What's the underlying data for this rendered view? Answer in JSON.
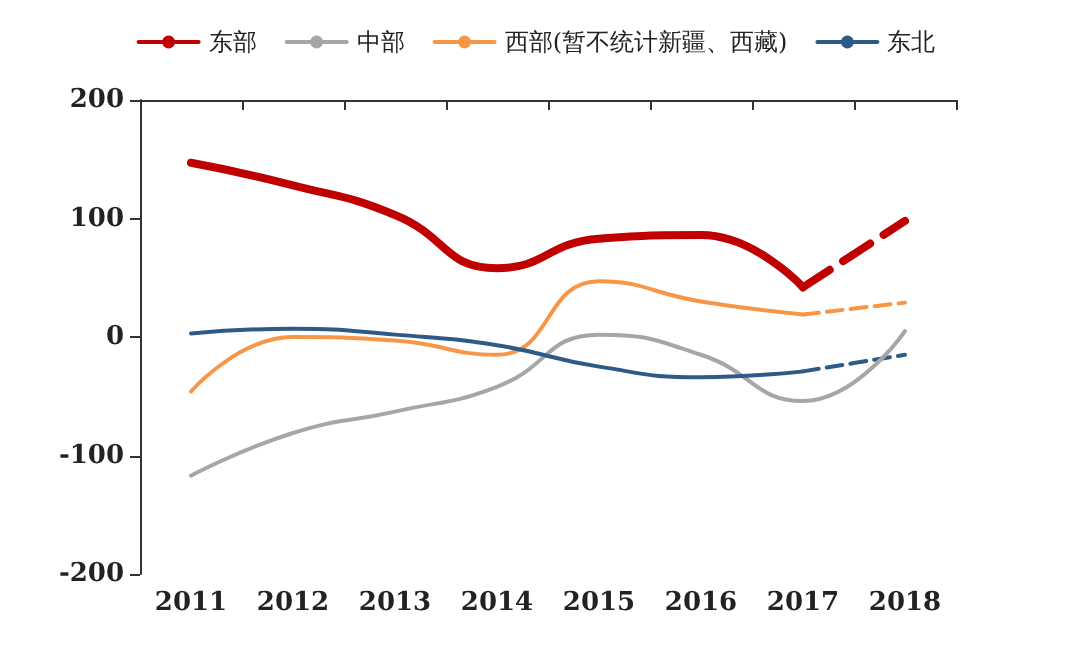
{
  "chart_data": {
    "type": "line",
    "categories": [
      "2011",
      "2012",
      "2013",
      "2014",
      "2015",
      "2016",
      "2017",
      "2018"
    ],
    "series": [
      {
        "name": "东部",
        "color": "#c00000",
        "values": [
          147,
          128,
          103,
          58,
          83,
          86,
          42,
          null
        ],
        "line_style": "solid"
      },
      {
        "name": "中部",
        "color": "#a6a6a6",
        "values": [
          -117,
          -81,
          -63,
          -42,
          2,
          -15,
          -54,
          5
        ],
        "line_style": "solid"
      },
      {
        "name": "西部(暂不统计新疆、西藏)",
        "color": "#f79646",
        "values": [
          -46,
          0,
          -3,
          -15,
          47,
          30,
          19,
          null
        ],
        "line_style": "solid"
      },
      {
        "name": "东北",
        "color": "#2e5a87",
        "values": [
          3,
          7,
          2,
          -7,
          -25,
          -34,
          -29,
          null
        ],
        "line_style": "solid"
      },
      {
        "color": "#c00000",
        "values": [
          null,
          null,
          null,
          null,
          null,
          null,
          42,
          98
        ],
        "line_style": "dashed"
      },
      {
        "color": "#f79646",
        "values": [
          null,
          null,
          null,
          null,
          null,
          null,
          19,
          29
        ],
        "line_style": "dashed"
      },
      {
        "color": "#2e5a87",
        "values": [
          null,
          null,
          null,
          null,
          null,
          null,
          -29,
          -15
        ],
        "line_style": "dashed"
      }
    ],
    "ylim": [
      -200,
      200
    ],
    "yticks": [
      -200,
      -100,
      0,
      100,
      200
    ],
    "grid": false,
    "legend": "top",
    "marker": "none"
  }
}
